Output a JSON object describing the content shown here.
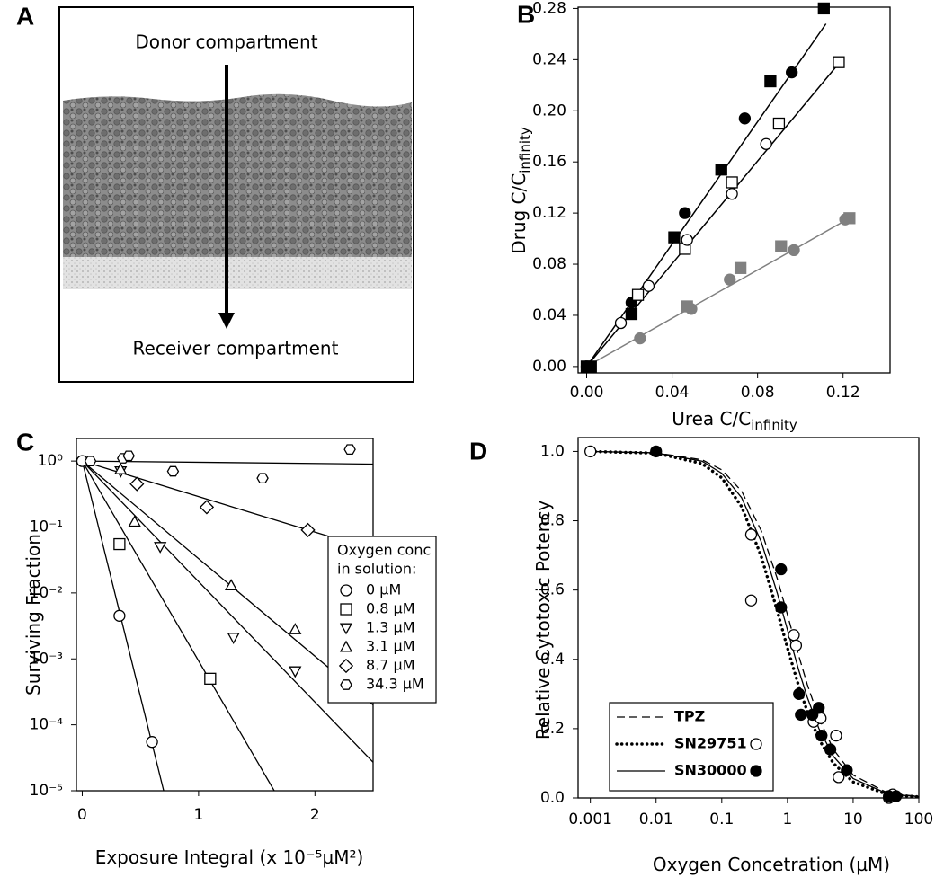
{
  "panel_a": {
    "label": "A",
    "top_text": "Donor compartment",
    "bottom_text": "Receiver compartment"
  },
  "chart_data": [
    {
      "type": "scatter",
      "label": "B",
      "x_label": "Urea C/C",
      "x_label_sub": "infinity",
      "y_label": "Drug C/C",
      "y_label_sub": "infinity",
      "xlim": [
        -0.004,
        0.142
      ],
      "ylim": [
        -0.005,
        0.281
      ],
      "xticks": [
        {
          "value": 0,
          "label": "0.00"
        },
        0.04,
        0.08,
        0.12
      ],
      "yticks": [
        {
          "value": 0,
          "label": "0.00"
        },
        0.04,
        0.08,
        0.12,
        0.16,
        {
          "value": 0.2,
          "label": "0.20"
        },
        0.24,
        0.28
      ],
      "series": [
        {
          "marker": "square",
          "filled": true,
          "color": "#000000",
          "x": [
            0,
            0.002,
            0.021,
            0.041,
            0.063,
            0.086,
            0.111
          ],
          "values": [
            0,
            0,
            0.041,
            0.101,
            0.154,
            0.223,
            0.28
          ]
        },
        {
          "marker": "circle",
          "filled": true,
          "color": "#000000",
          "x": [
            0,
            0.021,
            0.046,
            0.074,
            0.096
          ],
          "values": [
            0,
            0.05,
            0.12,
            0.194,
            0.23
          ]
        },
        {
          "marker": "square",
          "filled": false,
          "color": "#000000",
          "x": [
            0.024,
            0.046,
            0.068,
            0.09,
            0.118
          ],
          "values": [
            0.056,
            0.092,
            0.144,
            0.19,
            0.238
          ]
        },
        {
          "marker": "circle",
          "filled": false,
          "color": "#000000",
          "x": [
            0.016,
            0.029,
            0.047,
            0.068,
            0.084
          ],
          "values": [
            0.034,
            0.063,
            0.099,
            0.135,
            0.174
          ]
        },
        {
          "marker": "square",
          "filled": true,
          "color": "#808080",
          "x": [
            0.047,
            0.072,
            0.091,
            0.123
          ],
          "values": [
            0.047,
            0.077,
            0.094,
            0.116
          ]
        },
        {
          "marker": "circle",
          "filled": true,
          "color": "#808080",
          "x": [
            0.025,
            0.049,
            0.067,
            0.097,
            0.121
          ],
          "values": [
            0.022,
            0.045,
            0.068,
            0.091,
            0.115
          ]
        }
      ],
      "lines": [
        {
          "color": "#000000",
          "x": [
            0,
            0.112
          ],
          "values": [
            0,
            0.268
          ]
        },
        {
          "color": "#000000",
          "x": [
            0,
            0.118
          ],
          "values": [
            0,
            0.237
          ]
        },
        {
          "color": "#808080",
          "x": [
            0,
            0.123
          ],
          "values": [
            0,
            0.116
          ]
        }
      ]
    },
    {
      "type": "line",
      "label": "C",
      "log_y": true,
      "x_label": "Exposure Integral (x 10⁻⁵µM²)",
      "y_label": "Surviving Fraction",
      "xlim": [
        -0.05,
        2.5
      ],
      "ylim": [
        1e-05,
        2.2
      ],
      "xticks": [
        0,
        1,
        2
      ],
      "yticks": [
        {
          "value": 1,
          "label": "10⁰"
        },
        {
          "value": 0.1,
          "label": "10⁻¹"
        },
        {
          "value": 0.01,
          "label": "10⁻²"
        },
        {
          "value": 0.001,
          "label": "10⁻³"
        },
        {
          "value": 0.0001,
          "label": "10⁻⁴"
        },
        {
          "value": 1e-05,
          "label": "10⁻⁵"
        }
      ],
      "legend": {
        "title": [
          "Oxygen conc",
          "in solution:"
        ]
      },
      "series": [
        {
          "name": "0 µM",
          "marker": "circle",
          "filled": false,
          "color": "#000000",
          "x": [
            0,
            0.32,
            0.6
          ],
          "values": [
            1,
            0.0045,
            5.5e-05
          ],
          "fit_x": [
            0,
            0.7
          ],
          "fit_values": [
            1,
            1e-05
          ]
        },
        {
          "name": "0.8 µM",
          "marker": "square",
          "filled": false,
          "color": "#000000",
          "x": [
            0.32,
            1.1
          ],
          "values": [
            0.055,
            0.0005
          ],
          "fit_x": [
            0,
            1.65
          ],
          "fit_values": [
            1,
            1e-05
          ]
        },
        {
          "name": "1.3 µM",
          "marker": "triangle-down",
          "filled": false,
          "color": "#000000",
          "x": [
            0.33,
            0.67,
            1.3,
            1.83
          ],
          "values": [
            0.7,
            0.05,
            0.0021,
            0.00065
          ],
          "fit_x": [
            0,
            2.5
          ],
          "fit_values": [
            1,
            2.7e-05
          ]
        },
        {
          "name": "3.1 µM",
          "marker": "triangle-up",
          "filled": false,
          "color": "#000000",
          "x": [
            0.33,
            0.45,
            1.28,
            1.83
          ],
          "values": [
            0.75,
            0.12,
            0.013,
            0.0028
          ],
          "fit_x": [
            0,
            2.5
          ],
          "fit_values": [
            1,
            0.0002
          ]
        },
        {
          "name": "8.7 µM",
          "marker": "diamond",
          "filled": false,
          "color": "#000000",
          "x": [
            0.47,
            1.07,
            1.94
          ],
          "values": [
            0.45,
            0.2,
            0.09
          ],
          "fit_x": [
            0,
            2.5
          ],
          "fit_values": [
            1,
            0.045
          ]
        },
        {
          "name": "34.3 µM",
          "marker": "hexagon",
          "filled": false,
          "color": "#000000",
          "x": [
            0.07,
            0.35,
            0.4,
            0.78,
            1.55,
            2.3
          ],
          "values": [
            1,
            1.1,
            1.2,
            0.7,
            0.55,
            1.5
          ],
          "fit_x": [
            0,
            2.5
          ],
          "fit_values": [
            1,
            0.9
          ]
        }
      ]
    },
    {
      "type": "line",
      "label": "D",
      "log_x": true,
      "x_label": "Oxygen Concetration (µM)",
      "y_label": "Relative Cytotoxic Potency",
      "xlim": [
        0.00065,
        100
      ],
      "ylim": [
        0,
        1.04
      ],
      "xticks": [
        0.001,
        0.01,
        0.1,
        1,
        10,
        100
      ],
      "yticks": [
        {
          "value": 0,
          "label": "0.0"
        },
        0.2,
        0.4,
        0.6,
        0.8,
        {
          "value": 1,
          "label": "1.0"
        }
      ],
      "legend": {},
      "series": [
        {
          "name": "TPZ",
          "line_style": "dashed",
          "color": "#000000",
          "fit_x": [
            0.001,
            0.01,
            0.05,
            0.1,
            0.2,
            0.4,
            0.7,
            1,
            1.5,
            2,
            3,
            5,
            10,
            30,
            50,
            100
          ],
          "fit_values": [
            1.0,
            0.996,
            0.976,
            0.947,
            0.886,
            0.771,
            0.633,
            0.529,
            0.408,
            0.328,
            0.231,
            0.14,
            0.066,
            0.019,
            0.01,
            0.0044
          ]
        },
        {
          "name": "SN29751",
          "line_style": "dotted",
          "marker": "circle",
          "filled": false,
          "color": "#000000",
          "x": [
            0.001,
            0.28,
            0.28,
            1.25,
            1.35,
            2.5,
            3,
            3.2,
            5.5,
            6,
            35,
            40
          ],
          "values": [
            1,
            0.76,
            0.57,
            0.47,
            0.44,
            0.22,
            0.24,
            0.23,
            0.18,
            0.06,
            0,
            0.01
          ],
          "fit_x": [
            0.001,
            0.01,
            0.05,
            0.1,
            0.2,
            0.4,
            0.7,
            1,
            1.5,
            2,
            3,
            5,
            10,
            30,
            50,
            100
          ],
          "fit_values": [
            1.0,
            0.995,
            0.965,
            0.924,
            0.841,
            0.697,
            0.54,
            0.433,
            0.32,
            0.25,
            0.17,
            0.1,
            0.046,
            0.013,
            0.007,
            0.003
          ]
        },
        {
          "name": "SN30000",
          "line_style": "solid",
          "marker": "circle",
          "filled": true,
          "color": "#000000",
          "x": [
            0.01,
            0.8,
            0.8,
            1.5,
            1.6,
            2.4,
            3,
            3.3,
            4.5,
            8,
            35,
            45
          ],
          "values": [
            1,
            0.66,
            0.55,
            0.3,
            0.24,
            0.24,
            0.26,
            0.18,
            0.14,
            0.08,
            0.005,
            0.005
          ],
          "fit_x": [
            0.001,
            0.01,
            0.05,
            0.1,
            0.2,
            0.4,
            0.7,
            1,
            1.5,
            2,
            3,
            5,
            10,
            30,
            50,
            100
          ],
          "fit_values": [
            1.0,
            0.996,
            0.972,
            0.937,
            0.867,
            0.739,
            0.591,
            0.485,
            0.366,
            0.291,
            0.201,
            0.12,
            0.056,
            0.016,
            0.0086,
            0.0037
          ]
        }
      ]
    }
  ]
}
